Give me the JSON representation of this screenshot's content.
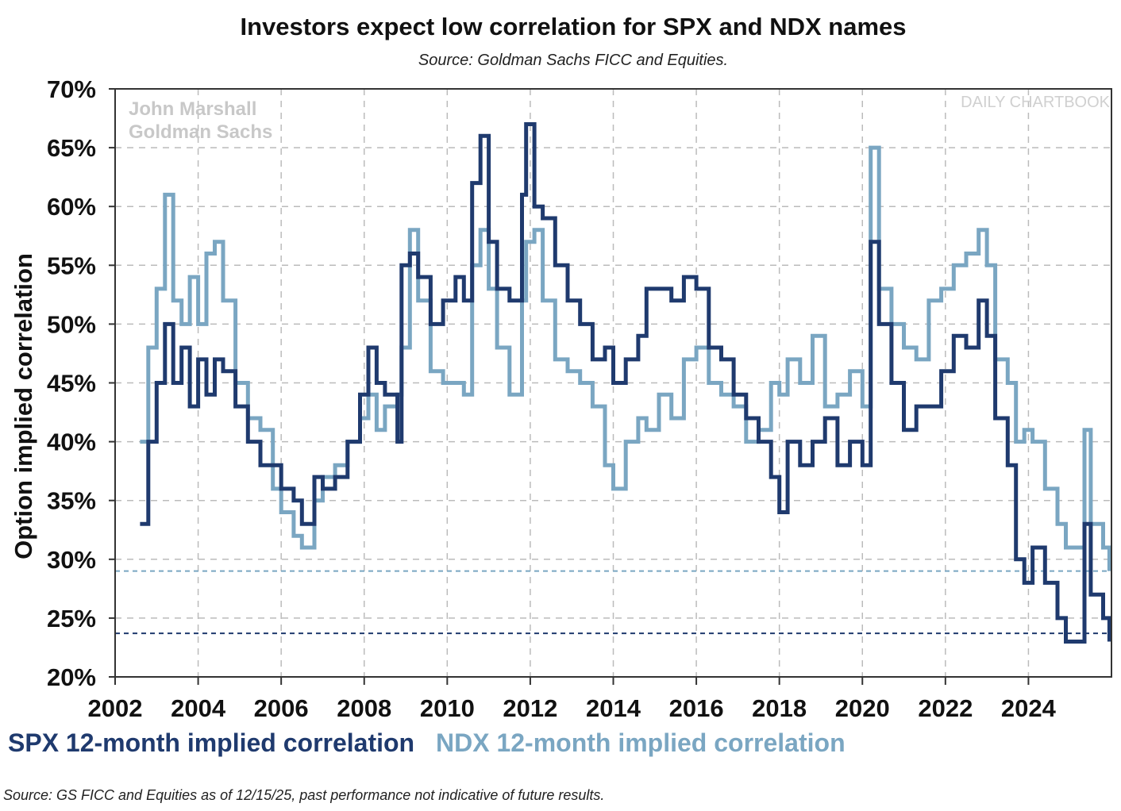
{
  "chart_data": {
    "type": "line",
    "title": "Investors expect low correlation for SPX and NDX names",
    "subtitle": "Source: Goldman Sachs FICC and Equities.",
    "ylabel": "Option implied correlation",
    "xlabel": "",
    "ylim": [
      20,
      70
    ],
    "xlim": [
      2002,
      2026
    ],
    "yticks": [
      20,
      25,
      30,
      35,
      40,
      45,
      50,
      55,
      60,
      65,
      70
    ],
    "ytick_labels": [
      "20%",
      "25%",
      "30%",
      "35%",
      "40%",
      "45%",
      "50%",
      "55%",
      "60%",
      "65%",
      "70%"
    ],
    "xticks": [
      2002,
      2004,
      2006,
      2008,
      2010,
      2012,
      2014,
      2016,
      2018,
      2020,
      2022,
      2024
    ],
    "xtick_labels": [
      "2002",
      "2004",
      "2006",
      "2008",
      "2010",
      "2012",
      "2014",
      "2016",
      "2018",
      "2020",
      "2022",
      "2024"
    ],
    "grid": true,
    "legend_placement": "bottom",
    "watermark": [
      "John Marshall",
      "Goldman Sachs"
    ],
    "watermark_right": "DAILY CHARTBOOK",
    "footer": "Source: GS FICC and Equities as of 12/15/25, past performance not indicative of future results.",
    "x": [
      2002.6,
      2002.8,
      2003.0,
      2003.2,
      2003.4,
      2003.6,
      2003.8,
      2004.0,
      2004.2,
      2004.4,
      2004.6,
      2004.9,
      2005.2,
      2005.5,
      2005.8,
      2006.0,
      2006.3,
      2006.5,
      2006.8,
      2007.0,
      2007.3,
      2007.6,
      2007.9,
      2008.1,
      2008.3,
      2008.5,
      2008.8,
      2008.9,
      2009.1,
      2009.3,
      2009.6,
      2009.9,
      2010.2,
      2010.4,
      2010.6,
      2010.8,
      2011.0,
      2011.2,
      2011.5,
      2011.8,
      2011.9,
      2012.1,
      2012.3,
      2012.6,
      2012.9,
      2013.2,
      2013.5,
      2013.8,
      2014.0,
      2014.3,
      2014.6,
      2014.8,
      2015.1,
      2015.4,
      2015.7,
      2016.0,
      2016.3,
      2016.6,
      2016.9,
      2017.2,
      2017.5,
      2017.8,
      2018.0,
      2018.2,
      2018.5,
      2018.8,
      2019.1,
      2019.4,
      2019.7,
      2020.0,
      2020.2,
      2020.4,
      2020.7,
      2021.0,
      2021.3,
      2021.6,
      2021.9,
      2022.2,
      2022.5,
      2022.8,
      2023.0,
      2023.2,
      2023.5,
      2023.7,
      2023.9,
      2024.1,
      2024.4,
      2024.7,
      2024.9,
      2025.2,
      2025.35,
      2025.5,
      2025.8,
      2025.95
    ],
    "series": [
      {
        "name": "SPX 12-month implied correlation",
        "color": "#1f3a6e",
        "values": [
          33,
          40,
          45,
          50,
          45,
          48,
          43,
          47,
          44,
          47,
          46,
          43,
          40,
          38,
          38,
          36,
          35,
          33,
          37,
          36,
          37,
          40,
          44,
          48,
          45,
          44,
          40,
          55,
          56,
          54,
          50,
          52,
          54,
          52,
          62,
          66,
          57,
          53,
          52,
          61,
          67,
          60,
          59,
          55,
          52,
          50,
          47,
          48,
          45,
          47,
          49,
          53,
          53,
          52,
          54,
          53,
          48,
          47,
          44,
          42,
          40,
          37,
          34,
          40,
          38,
          40,
          42,
          38,
          40,
          38,
          57,
          50,
          45,
          41,
          43,
          43,
          46,
          49,
          48,
          52,
          49,
          42,
          38,
          30,
          28,
          31,
          28,
          25,
          23,
          23,
          33,
          27,
          25,
          23
        ]
      },
      {
        "name": "NDX 12-month implied correlation",
        "color": "#7aa6c2",
        "values": [
          40,
          48,
          53,
          61,
          52,
          50,
          54,
          50,
          56,
          57,
          52,
          45,
          42,
          41,
          36,
          34,
          32,
          31,
          35,
          37,
          38,
          40,
          42,
          44,
          41,
          43,
          44,
          48,
          58,
          52,
          46,
          45,
          45,
          44,
          55,
          58,
          53,
          48,
          44,
          52,
          57,
          58,
          52,
          47,
          46,
          45,
          43,
          38,
          36,
          40,
          42,
          41,
          44,
          42,
          47,
          48,
          45,
          44,
          43,
          40,
          41,
          45,
          44,
          47,
          45,
          49,
          43,
          44,
          46,
          43,
          65,
          53,
          50,
          48,
          47,
          52,
          53,
          55,
          56,
          58,
          55,
          47,
          45,
          40,
          41,
          40,
          36,
          33,
          31,
          31,
          41,
          33,
          31,
          29
        ]
      }
    ],
    "reference_lines": [
      {
        "value": 29.0,
        "color": "#7aa6c2"
      },
      {
        "value": 23.7,
        "color": "#1f3a6e"
      }
    ]
  }
}
